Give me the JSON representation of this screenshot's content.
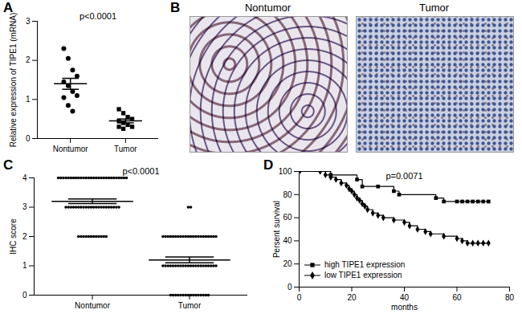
{
  "chart_data": [
    {
      "panel": "A",
      "type": "scatter",
      "ylabel": "Relative expression of TIPE1 (mRNA)",
      "ylim": [
        0,
        3
      ],
      "yticks": [
        0,
        1,
        2,
        3
      ],
      "annotations": [
        "p<0.0001"
      ],
      "series": [
        {
          "name": "Nontumor",
          "marker": "circle",
          "color": "#000000",
          "values": [
            2.3,
            2.05,
            1.75,
            1.6,
            1.45,
            1.35,
            1.2,
            1.1,
            1.05,
            0.85,
            0.7
          ],
          "mean": 1.4,
          "sem": 0.14
        },
        {
          "name": "Tumor",
          "marker": "square",
          "color": "#000000",
          "values": [
            0.75,
            0.65,
            0.55,
            0.5,
            0.45,
            0.4,
            0.35,
            0.3,
            0.3,
            0.25
          ],
          "mean": 0.45,
          "sem": 0.05
        }
      ]
    },
    {
      "panel": "B",
      "type": "image",
      "labels": [
        "Nontumor",
        "Tumor"
      ]
    },
    {
      "panel": "C",
      "type": "scatter",
      "ylabel": "IHC score",
      "ylim": [
        0,
        4
      ],
      "yticks": [
        0,
        1,
        2,
        3,
        4
      ],
      "annotations": [
        "p<0.0001"
      ],
      "series": [
        {
          "name": "Nontumor",
          "marker": "circle",
          "color": "#000000",
          "scores": [
            2,
            3,
            4
          ],
          "counts": [
            12,
            22,
            28
          ],
          "mean": 3.2,
          "sem": 0.08
        },
        {
          "name": "Tumor",
          "marker": "circle",
          "color": "#000000",
          "scores": [
            0,
            1,
            2,
            3
          ],
          "counts": [
            16,
            22,
            22,
            2
          ],
          "mean": 1.2,
          "sem": 0.1
        }
      ]
    },
    {
      "panel": "D",
      "type": "line",
      "xlabel": "months",
      "ylabel": "Persent survival",
      "xlim": [
        0,
        80
      ],
      "xticks": [
        0,
        20,
        40,
        60,
        80
      ],
      "ylim": [
        0,
        100
      ],
      "yticks": [
        0,
        20,
        40,
        60,
        80,
        100
      ],
      "annotations": [
        "p=0.0071"
      ],
      "legend": "lower left",
      "series": [
        {
          "name": "high TIPE1 expression",
          "marker": "square",
          "color": "#000000",
          "line_style": "solid",
          "x": [
            0,
            12,
            22,
            24,
            30,
            36,
            38,
            52,
            55,
            60,
            62,
            64,
            66,
            68,
            70,
            72
          ],
          "values": [
            100,
            97,
            93,
            87,
            87,
            83,
            80,
            77,
            74,
            74,
            74,
            74,
            74,
            74,
            74,
            74
          ]
        },
        {
          "name": "low TIPE1 expression",
          "marker": "diamond",
          "color": "#000000",
          "line_style": "solid",
          "x": [
            0,
            8,
            10,
            12,
            14,
            16,
            18,
            19,
            20,
            21,
            22,
            23,
            24,
            25,
            26,
            28,
            30,
            32,
            36,
            40,
            42,
            45,
            48,
            50,
            55,
            60,
            62,
            64,
            66,
            68,
            70,
            72
          ],
          "values": [
            100,
            100,
            97,
            95,
            93,
            90,
            88,
            85,
            83,
            80,
            77,
            75,
            72,
            70,
            67,
            64,
            62,
            60,
            58,
            56,
            53,
            50,
            48,
            46,
            44,
            42,
            40,
            38,
            38,
            38,
            38,
            38
          ]
        }
      ]
    }
  ]
}
